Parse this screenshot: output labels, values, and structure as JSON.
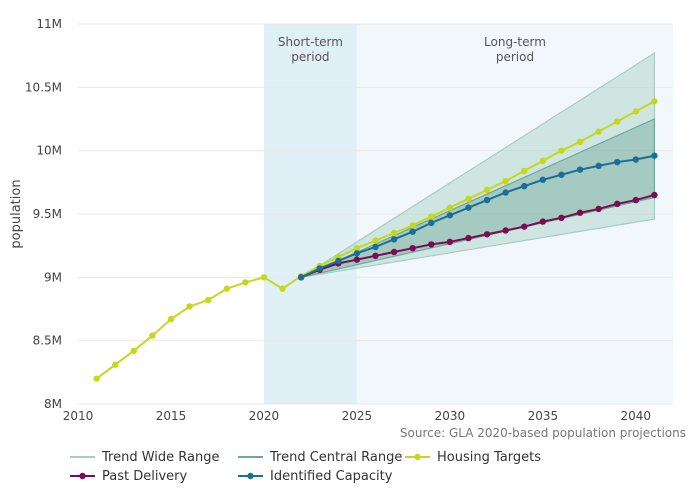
{
  "chart_data": {
    "type": "line",
    "y_label": "population",
    "source": "Source: GLA 2020-based population projections",
    "xlim": [
      2010,
      2042
    ],
    "xticks": [
      2010,
      2015,
      2020,
      2025,
      2030,
      2035,
      2040
    ],
    "ylim": [
      8000000,
      11000000
    ],
    "yticks": [
      {
        "value": 8000000,
        "label": "8M"
      },
      {
        "value": 8500000,
        "label": "8.5M"
      },
      {
        "value": 9000000,
        "label": "9M"
      },
      {
        "value": 9500000,
        "label": "9.5M"
      },
      {
        "value": 10000000,
        "label": "10M"
      },
      {
        "value": 10500000,
        "label": "10.5M"
      },
      {
        "value": 11000000,
        "label": "11M"
      }
    ],
    "grid": true,
    "periods": [
      {
        "label": [
          "Short-term",
          "period"
        ],
        "start": 2020,
        "end": 2025,
        "color": "#e1eff7"
      },
      {
        "label": [
          "Long-term",
          "period"
        ],
        "start": 2025,
        "end": 2042,
        "color": "#f1f7fb"
      }
    ],
    "ranges": [
      {
        "name": "Trend Wide Range",
        "color": "#a6cfc3",
        "x": [
          2022,
          2041
        ],
        "low": [
          9000000,
          9460000
        ],
        "high": [
          9000000,
          10770000
        ]
      },
      {
        "name": "Trend Central Range",
        "color": "#6ea89b",
        "x": [
          2022,
          2041
        ],
        "low": [
          9000000,
          9630000
        ],
        "high": [
          9000000,
          10250000
        ]
      }
    ],
    "x": [
      2011,
      2012,
      2013,
      2014,
      2015,
      2016,
      2017,
      2018,
      2019,
      2020,
      2021,
      2022,
      2023,
      2024,
      2025,
      2026,
      2027,
      2028,
      2029,
      2030,
      2031,
      2032,
      2033,
      2034,
      2035,
      2036,
      2037,
      2038,
      2039,
      2040,
      2041
    ],
    "series": [
      {
        "name": "Housing Targets",
        "color": "#c5d81b",
        "values": [
          8200000,
          8310000,
          8420000,
          8540000,
          8670000,
          8770000,
          8820000,
          8910000,
          8960000,
          9000000,
          8910000,
          9010000,
          9090000,
          9160000,
          9230000,
          9290000,
          9350000,
          9410000,
          9480000,
          9550000,
          9620000,
          9690000,
          9760000,
          9840000,
          9920000,
          10000000,
          10070000,
          10150000,
          10230000,
          10310000,
          10390000
        ]
      },
      {
        "name": "Past Delivery",
        "color": "#7a0d50",
        "values": [
          null,
          null,
          null,
          null,
          null,
          null,
          null,
          null,
          null,
          null,
          null,
          9000000,
          9060000,
          9110000,
          9140000,
          9170000,
          9200000,
          9230000,
          9260000,
          9280000,
          9310000,
          9340000,
          9370000,
          9400000,
          9440000,
          9470000,
          9510000,
          9540000,
          9580000,
          9610000,
          9650000
        ]
      },
      {
        "name": "Identified Capacity",
        "color": "#1b6f96",
        "values": [
          null,
          null,
          null,
          null,
          null,
          null,
          null,
          null,
          null,
          null,
          null,
          9000000,
          9070000,
          9130000,
          9190000,
          9240000,
          9300000,
          9360000,
          9430000,
          9490000,
          9550000,
          9610000,
          9670000,
          9720000,
          9770000,
          9810000,
          9850000,
          9880000,
          9910000,
          9930000,
          9960000
        ]
      }
    ]
  }
}
